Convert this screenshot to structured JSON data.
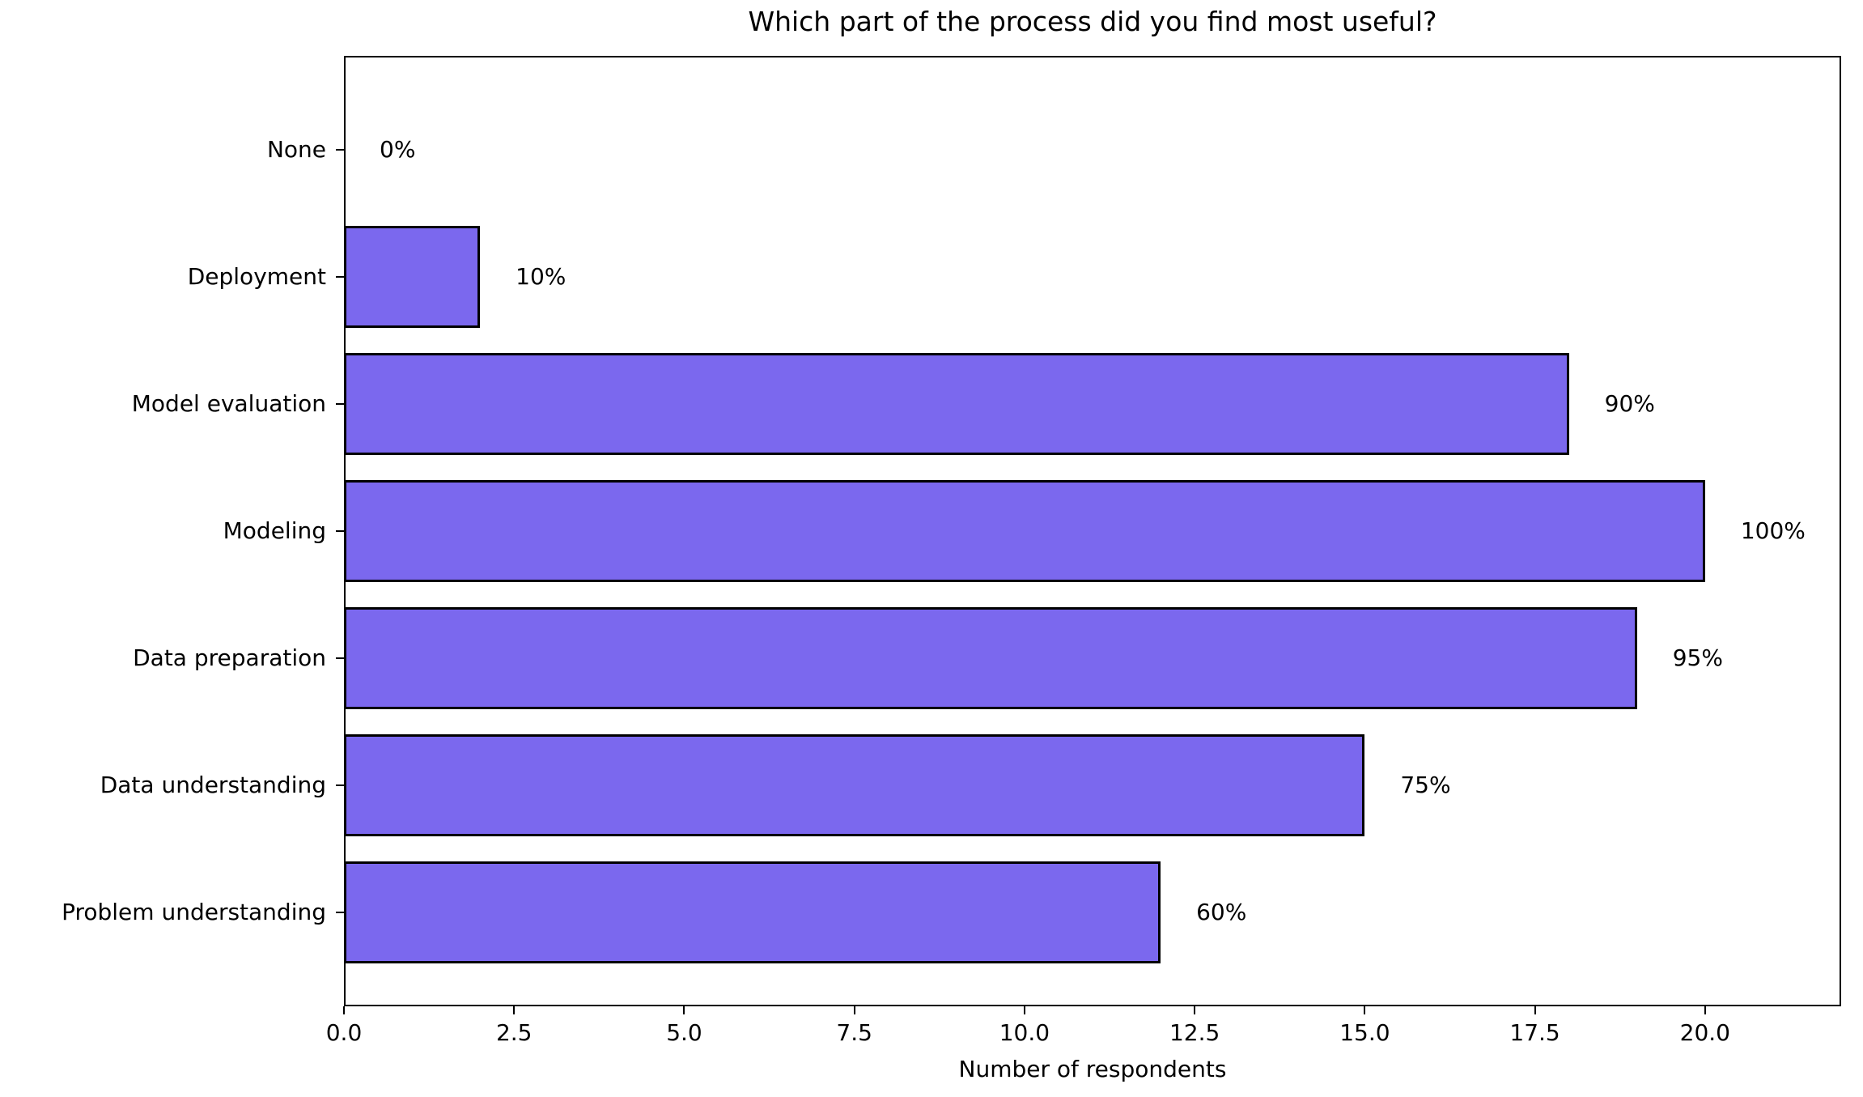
{
  "chart_data": {
    "type": "bar",
    "orientation": "horizontal",
    "title": "Which part of the process did you find most useful?",
    "xlabel": "Number of respondents",
    "ylabel": "",
    "categories": [
      "None",
      "Deployment",
      "Model evaluation",
      "Modeling",
      "Data preparation",
      "Data understanding",
      "Problem understanding"
    ],
    "values": [
      0,
      2,
      18,
      20,
      19,
      15,
      12
    ],
    "percent_labels": [
      "0%",
      "10%",
      "90%",
      "100%",
      "95%",
      "75%",
      "60%"
    ],
    "x_ticks": [
      "0.0",
      "2.5",
      "5.0",
      "7.5",
      "10.0",
      "12.5",
      "15.0",
      "17.5",
      "20.0"
    ],
    "x_tick_values": [
      0,
      2.5,
      5,
      7.5,
      10,
      12.5,
      15,
      17.5,
      20
    ],
    "xlim": [
      0,
      22
    ],
    "grid": false,
    "legend": false,
    "bar_color": "#7B68EE",
    "bar_edge_color": "#000000",
    "text_color": "#000000",
    "background_color": "#ffffff"
  }
}
